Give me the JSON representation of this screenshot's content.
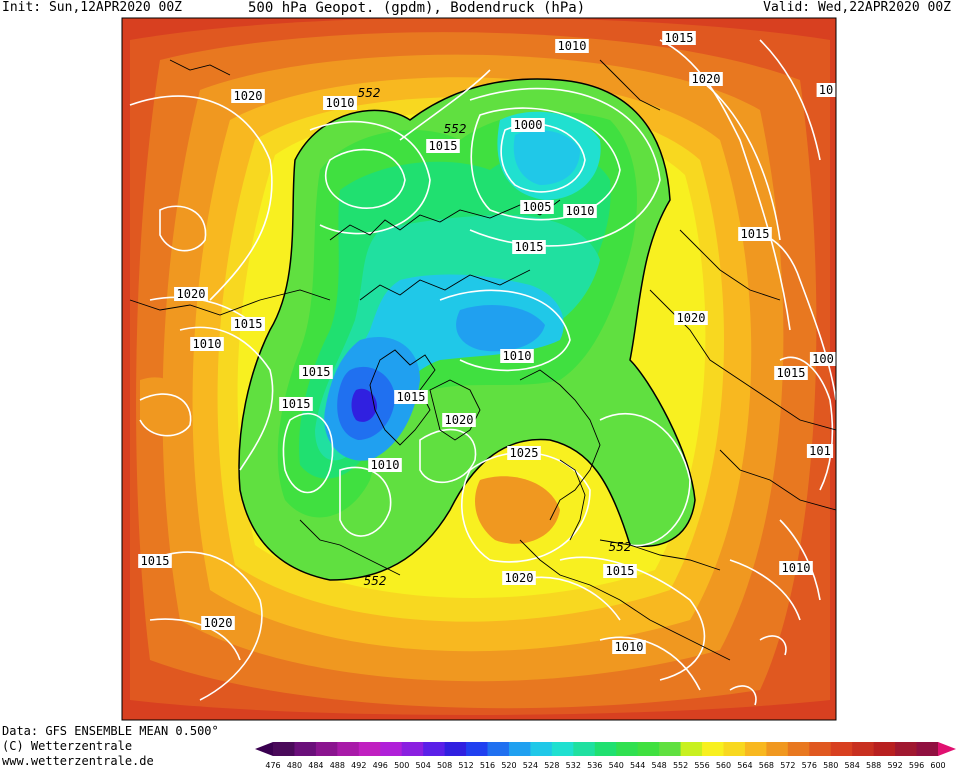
{
  "header": {
    "init": "Init: Sun,12APR2020 00Z",
    "title": "500 hPa Geopot. (gpdm), Bodendruck (hPa)",
    "valid": "Valid: Wed,22APR2020 00Z"
  },
  "footer": {
    "data": "Data: GFS ENSEMBLE MEAN 0.500°",
    "copyright": "(C) Wetterzentrale",
    "url": "www.wetterzentrale.de"
  },
  "colorbar": {
    "labels": [
      "476",
      "480",
      "484",
      "488",
      "492",
      "496",
      "500",
      "504",
      "508",
      "512",
      "516",
      "520",
      "524",
      "528",
      "532",
      "536",
      "540",
      "544",
      "548",
      "552",
      "556",
      "560",
      "564",
      "568",
      "572",
      "576",
      "580",
      "584",
      "588",
      "592",
      "596",
      "600"
    ],
    "colors": [
      "#4a0a5a",
      "#6a0f7a",
      "#8a148f",
      "#a81aa8",
      "#c020c0",
      "#b020d8",
      "#8a20e0",
      "#5a20e8",
      "#3020e0",
      "#2040f0",
      "#2070f0",
      "#20a0f0",
      "#20c8e8",
      "#20e0d0",
      "#20e0a0",
      "#20e070",
      "#30e050",
      "#40e040",
      "#60e040",
      "#c8f020",
      "#f8f020",
      "#f8d820",
      "#f8b820",
      "#f09820",
      "#e87820",
      "#e05820",
      "#d84020",
      "#c83020",
      "#b82020",
      "#a01830",
      "#901040"
    ]
  },
  "isobar_labels": [
    {
      "t": "1020"
    },
    {
      "t": "1010"
    },
    {
      "t": "1015"
    },
    {
      "t": "1000"
    },
    {
      "t": "1005"
    },
    {
      "t": "1010"
    },
    {
      "t": "1010"
    },
    {
      "t": "1015"
    },
    {
      "t": "1020"
    },
    {
      "t": "10"
    },
    {
      "t": "1015"
    },
    {
      "t": "1020"
    },
    {
      "t": "1015"
    },
    {
      "t": "1010"
    },
    {
      "t": "1015"
    },
    {
      "t": "1015"
    },
    {
      "t": "1015"
    },
    {
      "t": "1020"
    },
    {
      "t": "1010"
    },
    {
      "t": "1010"
    },
    {
      "t": "1025"
    },
    {
      "t": "1020"
    },
    {
      "t": "1010"
    },
    {
      "t": "1015"
    },
    {
      "t": "1020"
    },
    {
      "t": "1015"
    },
    {
      "t": "1020"
    },
    {
      "t": "100"
    },
    {
      "t": "1015"
    },
    {
      "t": "101"
    },
    {
      "t": "1015"
    },
    {
      "t": "1010"
    },
    {
      "t": "1015"
    },
    {
      "t": "1020"
    },
    {
      "t": "1010"
    }
  ],
  "geopot_labels": [
    {
      "t": "552"
    },
    {
      "t": "552"
    },
    {
      "t": "552"
    },
    {
      "t": "552"
    }
  ]
}
